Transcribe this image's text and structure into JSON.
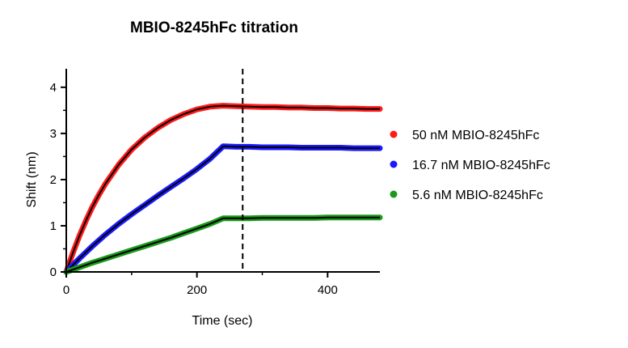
{
  "chart_data": {
    "type": "line",
    "title": "MBIO-8245hFc titration",
    "xlabel": "Time (sec)",
    "ylabel": "Shift (nm)",
    "xlim": [
      0,
      480
    ],
    "ylim": [
      0,
      4.4
    ],
    "xticks": [
      0,
      200,
      400
    ],
    "yticks": [
      0,
      1,
      2,
      3,
      4
    ],
    "grid": false,
    "legend_position": "right",
    "dissociation_marker_x": 270,
    "association_end_x": 240,
    "series": [
      {
        "name": "50 nM MBIO-8245hFc",
        "color": "#ff1a1a",
        "x": [
          0,
          10,
          20,
          30,
          40,
          50,
          60,
          80,
          100,
          120,
          140,
          160,
          180,
          200,
          220,
          240,
          260,
          280,
          300,
          320,
          340,
          360,
          380,
          400,
          420,
          440,
          460,
          480
        ],
        "values": [
          0,
          0.41,
          0.78,
          1.11,
          1.41,
          1.67,
          1.91,
          2.32,
          2.65,
          2.91,
          3.12,
          3.29,
          3.42,
          3.52,
          3.58,
          3.6,
          3.59,
          3.58,
          3.57,
          3.57,
          3.56,
          3.56,
          3.55,
          3.55,
          3.54,
          3.54,
          3.53,
          3.53
        ]
      },
      {
        "name": "16.7 nM MBIO-8245hFc",
        "color": "#1a1aff",
        "x": [
          0,
          20,
          40,
          60,
          80,
          100,
          120,
          140,
          160,
          180,
          200,
          220,
          240,
          260,
          280,
          300,
          320,
          340,
          360,
          380,
          400,
          420,
          440,
          460,
          480
        ],
        "values": [
          0,
          0.29,
          0.56,
          0.81,
          1.04,
          1.25,
          1.45,
          1.65,
          1.84,
          2.03,
          2.23,
          2.45,
          2.72,
          2.71,
          2.71,
          2.7,
          2.7,
          2.7,
          2.69,
          2.69,
          2.69,
          2.69,
          2.68,
          2.68,
          2.68
        ]
      },
      {
        "name": "5.6 nM MBIO-8245hFc",
        "color": "#1a9a1a",
        "x": [
          0,
          20,
          40,
          60,
          80,
          100,
          120,
          140,
          160,
          180,
          200,
          220,
          240,
          260,
          280,
          300,
          320,
          340,
          360,
          380,
          400,
          420,
          440,
          460,
          480
        ],
        "values": [
          0,
          0.1,
          0.2,
          0.29,
          0.38,
          0.47,
          0.56,
          0.65,
          0.74,
          0.84,
          0.94,
          1.04,
          1.16,
          1.16,
          1.16,
          1.17,
          1.17,
          1.17,
          1.17,
          1.17,
          1.18,
          1.18,
          1.18,
          1.18,
          1.18
        ]
      }
    ]
  }
}
